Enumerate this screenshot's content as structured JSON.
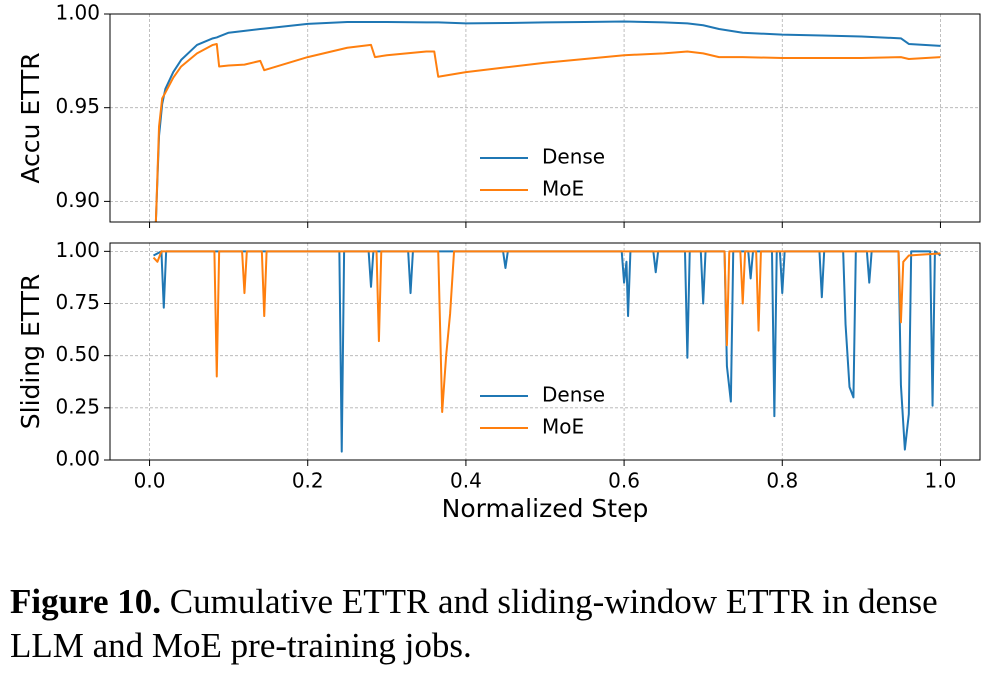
{
  "chart_data": [
    {
      "type": "line",
      "ylabel": "Accu ETTR",
      "x": [
        0.008,
        0.012,
        0.016,
        0.02,
        0.03,
        0.04,
        0.06,
        0.08,
        0.085,
        0.088,
        0.1,
        0.12,
        0.14,
        0.145,
        0.2,
        0.25,
        0.28,
        0.285,
        0.3,
        0.35,
        0.36,
        0.365,
        0.4,
        0.45,
        0.5,
        0.55,
        0.6,
        0.65,
        0.68,
        0.7,
        0.72,
        0.75,
        0.8,
        0.85,
        0.9,
        0.95,
        0.96,
        1.0
      ],
      "series": [
        {
          "name": "Dense",
          "color": "#1f77b4",
          "values": [
            0.889,
            0.935,
            0.952,
            0.96,
            0.969,
            0.9755,
            0.9835,
            0.987,
            0.9875,
            0.988,
            0.99,
            0.991,
            0.992,
            0.9922,
            0.9947,
            0.9957,
            0.9957,
            0.9957,
            0.9957,
            0.9955,
            0.9955,
            0.9955,
            0.995,
            0.9952,
            0.9955,
            0.9957,
            0.996,
            0.9955,
            0.995,
            0.994,
            0.992,
            0.99,
            0.989,
            0.9885,
            0.988,
            0.987,
            0.984,
            0.983
          ]
        },
        {
          "name": "MoE",
          "color": "#ff7f0e",
          "values": [
            0.889,
            0.94,
            0.955,
            0.958,
            0.966,
            0.972,
            0.979,
            0.9835,
            0.984,
            0.972,
            0.9725,
            0.973,
            0.975,
            0.97,
            0.977,
            0.982,
            0.9835,
            0.977,
            0.978,
            0.98,
            0.98,
            0.9665,
            0.969,
            0.9715,
            0.974,
            0.976,
            0.978,
            0.979,
            0.98,
            0.979,
            0.977,
            0.977,
            0.9765,
            0.9765,
            0.9765,
            0.977,
            0.976,
            0.977
          ]
        }
      ],
      "xlim": [
        -0.05,
        1.05
      ],
      "xticks": [
        0,
        0.2,
        0.4,
        0.6,
        0.8,
        1
      ],
      "ylim": [
        0.889,
        1.0
      ],
      "yticks": [
        {
          "value": 0.9,
          "label": "0.90"
        },
        {
          "value": 0.95,
          "label": "0.95"
        },
        {
          "value": 1.0,
          "label": "1.00"
        }
      ],
      "grid": true,
      "legend": "lower center"
    },
    {
      "type": "line",
      "ylabel": "Sliding ETTR",
      "xlabel": "Normalized Step",
      "series": [
        {
          "name": "Dense",
          "color": "#1f77b4",
          "x": [
            0.005,
            0.015,
            0.018,
            0.021,
            0.24,
            0.243,
            0.246,
            0.277,
            0.28,
            0.283,
            0.327,
            0.33,
            0.333,
            0.447,
            0.45,
            0.453,
            0.597,
            0.6,
            0.603,
            0.605,
            0.608,
            0.637,
            0.64,
            0.643,
            0.677,
            0.68,
            0.683,
            0.697,
            0.7,
            0.703,
            0.727,
            0.73,
            0.735,
            0.738,
            0.757,
            0.76,
            0.763,
            0.787,
            0.79,
            0.793,
            0.797,
            0.8,
            0.803,
            0.847,
            0.85,
            0.853,
            0.877,
            0.88,
            0.885,
            0.89,
            0.893,
            0.907,
            0.91,
            0.913,
            0.947,
            0.95,
            0.955,
            0.96,
            0.963,
            0.987,
            0.99,
            0.993,
            1.0
          ],
          "values": [
            0.98,
            1,
            0.73,
            1,
            1,
            0.04,
            1,
            1,
            0.83,
            1,
            1,
            0.8,
            1,
            1,
            0.92,
            1,
            1,
            0.85,
            0.95,
            0.69,
            1,
            1,
            0.9,
            1,
            1,
            0.49,
            1,
            1,
            0.75,
            1,
            1,
            0.45,
            0.28,
            1,
            1,
            0.87,
            1,
            1,
            0.21,
            1,
            1,
            0.8,
            1,
            1,
            0.78,
            1,
            1,
            0.65,
            0.35,
            0.3,
            1,
            1,
            0.85,
            1,
            1,
            0.36,
            0.05,
            0.22,
            1,
            1,
            0.26,
            1,
            0.98
          ]
        },
        {
          "name": "MoE",
          "color": "#ff7f0e",
          "x": [
            0.005,
            0.01,
            0.015,
            0.082,
            0.085,
            0.088,
            0.117,
            0.12,
            0.123,
            0.142,
            0.145,
            0.148,
            0.287,
            0.29,
            0.293,
            0.365,
            0.37,
            0.375,
            0.38,
            0.385,
            0.727,
            0.73,
            0.733,
            0.747,
            0.75,
            0.753,
            0.767,
            0.77,
            0.773,
            0.947,
            0.95,
            0.953,
            0.96,
            1.0
          ],
          "values": [
            0.97,
            0.95,
            1,
            1,
            0.4,
            1,
            1,
            0.8,
            1,
            1,
            0.69,
            1,
            1,
            0.57,
            1,
            1,
            0.23,
            0.5,
            0.7,
            1,
            1,
            0.55,
            1,
            1,
            0.75,
            1,
            1,
            0.62,
            1,
            1,
            0.66,
            0.95,
            0.98,
            0.99
          ]
        }
      ],
      "xlim": [
        -0.05,
        1.05
      ],
      "xticks": [
        {
          "value": 0,
          "label": "0.0"
        },
        0.2,
        0.4,
        0.6,
        0.8,
        {
          "value": 1,
          "label": "1.0"
        }
      ],
      "ylim": [
        0,
        1.04
      ],
      "yticks": [
        {
          "value": 0,
          "label": "0.00"
        },
        0.25,
        {
          "value": 0.5,
          "label": "0.50"
        },
        0.75,
        {
          "value": 1,
          "label": "1.00"
        }
      ],
      "grid": true,
      "legend": "lower center"
    }
  ],
  "caption": {
    "label": "Figure 10.",
    "text": "Cumulative ETTR and sliding-window ETTR in dense LLM and MoE pre-training jobs."
  }
}
